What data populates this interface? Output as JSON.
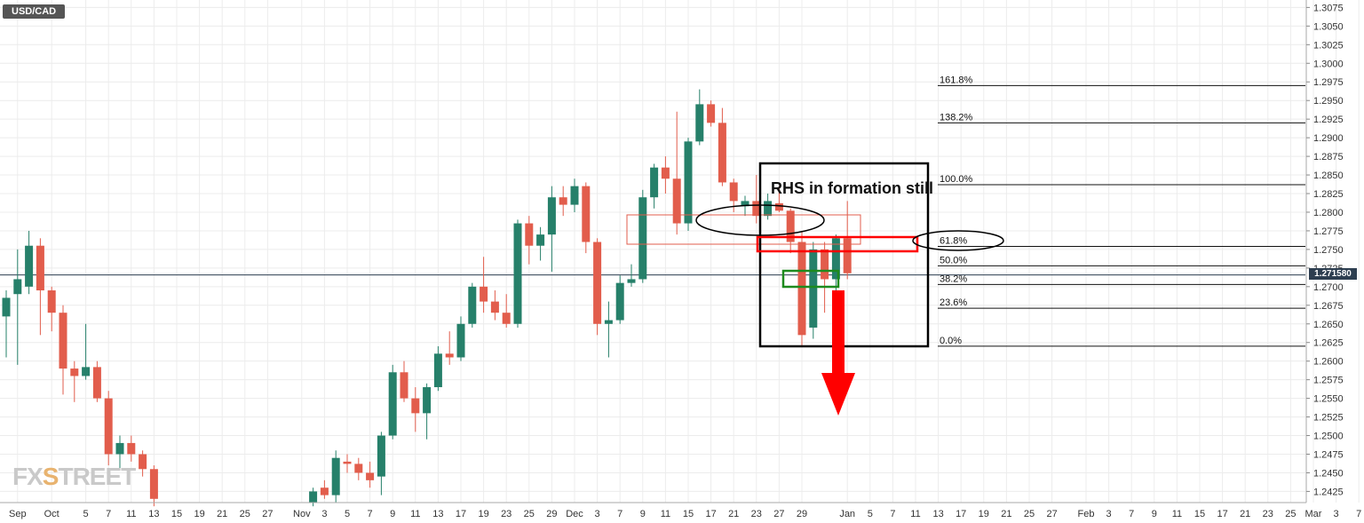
{
  "symbol": "USD/CAD",
  "annotation": "RHS in formation still",
  "current_price_label": "1.271580",
  "watermark": {
    "prefix": "FX",
    "highlight": "S",
    "suffix": "TREET"
  },
  "colors": {
    "bull": "#26806a",
    "bear": "#e25d4c",
    "price_line": "#2d3e50",
    "grid": "#ececec",
    "annotation_red": "#ff0000",
    "annotation_green": "#1e8a1e"
  },
  "chart_data": {
    "type": "candlestick",
    "title": "USD/CAD",
    "ylim": [
      1.241,
      1.3085
    ],
    "y_ticks": [
      "1.2425",
      "1.2450",
      "1.2475",
      "1.2500",
      "1.2525",
      "1.2550",
      "1.2575",
      "1.2600",
      "1.2625",
      "1.2650",
      "1.2675",
      "1.2700",
      "1.2725",
      "1.2750",
      "1.2775",
      "1.2800",
      "1.2825",
      "1.2850",
      "1.2875",
      "1.2900",
      "1.2925",
      "1.2950",
      "1.2975",
      "1.3000",
      "1.3025",
      "1.3050",
      "1.3075"
    ],
    "x_ticks": [
      {
        "label": "Sep",
        "x": 1
      },
      {
        "label": "Oct",
        "x": 4
      },
      {
        "label": "5",
        "x": 7
      },
      {
        "label": "7",
        "x": 9
      },
      {
        "label": "11",
        "x": 11
      },
      {
        "label": "13",
        "x": 13
      },
      {
        "label": "15",
        "x": 15
      },
      {
        "label": "19",
        "x": 17
      },
      {
        "label": "21",
        "x": 19
      },
      {
        "label": "25",
        "x": 21
      },
      {
        "label": "27",
        "x": 23
      },
      {
        "label": "Nov",
        "x": 26
      },
      {
        "label": "3",
        "x": 28
      },
      {
        "label": "5",
        "x": 30
      },
      {
        "label": "7",
        "x": 32
      },
      {
        "label": "9",
        "x": 34
      },
      {
        "label": "11",
        "x": 36
      },
      {
        "label": "13",
        "x": 38
      },
      {
        "label": "17",
        "x": 40
      },
      {
        "label": "19",
        "x": 42
      },
      {
        "label": "23",
        "x": 44
      },
      {
        "label": "25",
        "x": 46
      },
      {
        "label": "29",
        "x": 48
      },
      {
        "label": "Dec",
        "x": 50
      },
      {
        "label": "3",
        "x": 52
      },
      {
        "label": "7",
        "x": 54
      },
      {
        "label": "9",
        "x": 56
      },
      {
        "label": "11",
        "x": 58
      },
      {
        "label": "15",
        "x": 60
      },
      {
        "label": "17",
        "x": 62
      },
      {
        "label": "21",
        "x": 64
      },
      {
        "label": "23",
        "x": 66
      },
      {
        "label": "27",
        "x": 68
      },
      {
        "label": "29",
        "x": 70
      },
      {
        "label": "Jan",
        "x": 74
      },
      {
        "label": "5",
        "x": 76
      },
      {
        "label": "7",
        "x": 78
      },
      {
        "label": "11",
        "x": 80
      },
      {
        "label": "13",
        "x": 82
      },
      {
        "label": "17",
        "x": 84
      },
      {
        "label": "19",
        "x": 86
      },
      {
        "label": "21",
        "x": 88
      },
      {
        "label": "25",
        "x": 90
      },
      {
        "label": "27",
        "x": 92
      },
      {
        "label": "Feb",
        "x": 95
      },
      {
        "label": "3",
        "x": 97
      },
      {
        "label": "7",
        "x": 99
      },
      {
        "label": "9",
        "x": 101
      },
      {
        "label": "11",
        "x": 103
      },
      {
        "label": "15",
        "x": 105
      },
      {
        "label": "17",
        "x": 107
      },
      {
        "label": "21",
        "x": 109
      },
      {
        "label": "23",
        "x": 111
      },
      {
        "label": "25",
        "x": 113
      },
      {
        "label": "Mar",
        "x": 115
      },
      {
        "label": "3",
        "x": 117
      },
      {
        "label": "7",
        "x": 119
      }
    ],
    "candles": [
      {
        "x": 0,
        "o": 1.266,
        "h": 1.2695,
        "l": 1.2605,
        "c": 1.2685
      },
      {
        "x": 1,
        "o": 1.269,
        "h": 1.275,
        "l": 1.2595,
        "c": 1.271
      },
      {
        "x": 2,
        "o": 1.27,
        "h": 1.2775,
        "l": 1.269,
        "c": 1.2755
      },
      {
        "x": 3,
        "o": 1.2755,
        "h": 1.2765,
        "l": 1.2635,
        "c": 1.2695
      },
      {
        "x": 4,
        "o": 1.2695,
        "h": 1.27,
        "l": 1.264,
        "c": 1.2665
      },
      {
        "x": 5,
        "o": 1.2665,
        "h": 1.2675,
        "l": 1.2555,
        "c": 1.259
      },
      {
        "x": 6,
        "o": 1.259,
        "h": 1.26,
        "l": 1.2545,
        "c": 1.258
      },
      {
        "x": 7,
        "o": 1.258,
        "h": 1.265,
        "l": 1.2575,
        "c": 1.2592
      },
      {
        "x": 8,
        "o": 1.2592,
        "h": 1.26,
        "l": 1.2545,
        "c": 1.255
      },
      {
        "x": 9,
        "o": 1.255,
        "h": 1.256,
        "l": 1.246,
        "c": 1.2475
      },
      {
        "x": 10,
        "o": 1.2475,
        "h": 1.25,
        "l": 1.2455,
        "c": 1.249
      },
      {
        "x": 11,
        "o": 1.249,
        "h": 1.25,
        "l": 1.2465,
        "c": 1.2475
      },
      {
        "x": 12,
        "o": 1.2475,
        "h": 1.248,
        "l": 1.2445,
        "c": 1.2455
      },
      {
        "x": 13,
        "o": 1.2455,
        "h": 1.246,
        "l": 1.2405,
        "c": 1.2415
      },
      {
        "x": 27,
        "o": 1.241,
        "h": 1.243,
        "l": 1.2405,
        "c": 1.2425
      },
      {
        "x": 28,
        "o": 1.243,
        "h": 1.244,
        "l": 1.2415,
        "c": 1.242
      },
      {
        "x": 29,
        "o": 1.242,
        "h": 1.248,
        "l": 1.241,
        "c": 1.247
      },
      {
        "x": 30,
        "o": 1.2465,
        "h": 1.2475,
        "l": 1.245,
        "c": 1.2462
      },
      {
        "x": 31,
        "o": 1.2462,
        "h": 1.247,
        "l": 1.244,
        "c": 1.245
      },
      {
        "x": 32,
        "o": 1.245,
        "h": 1.2465,
        "l": 1.243,
        "c": 1.244
      },
      {
        "x": 33,
        "o": 1.2445,
        "h": 1.2505,
        "l": 1.242,
        "c": 1.25
      },
      {
        "x": 34,
        "o": 1.25,
        "h": 1.2595,
        "l": 1.2495,
        "c": 1.2585
      },
      {
        "x": 35,
        "o": 1.2585,
        "h": 1.26,
        "l": 1.2545,
        "c": 1.255
      },
      {
        "x": 36,
        "o": 1.255,
        "h": 1.2565,
        "l": 1.2505,
        "c": 1.253
      },
      {
        "x": 37,
        "o": 1.253,
        "h": 1.257,
        "l": 1.2495,
        "c": 1.2565
      },
      {
        "x": 38,
        "o": 1.2565,
        "h": 1.262,
        "l": 1.256,
        "c": 1.261
      },
      {
        "x": 39,
        "o": 1.261,
        "h": 1.264,
        "l": 1.2595,
        "c": 1.2605
      },
      {
        "x": 40,
        "o": 1.2605,
        "h": 1.266,
        "l": 1.26,
        "c": 1.265
      },
      {
        "x": 41,
        "o": 1.265,
        "h": 1.2705,
        "l": 1.2645,
        "c": 1.27
      },
      {
        "x": 42,
        "o": 1.27,
        "h": 1.274,
        "l": 1.2665,
        "c": 1.268
      },
      {
        "x": 43,
        "o": 1.268,
        "h": 1.2695,
        "l": 1.2655,
        "c": 1.2665
      },
      {
        "x": 44,
        "o": 1.2665,
        "h": 1.269,
        "l": 1.2645,
        "c": 1.265
      },
      {
        "x": 45,
        "o": 1.265,
        "h": 1.279,
        "l": 1.2645,
        "c": 1.2785
      },
      {
        "x": 46,
        "o": 1.2785,
        "h": 1.2795,
        "l": 1.273,
        "c": 1.2755
      },
      {
        "x": 47,
        "o": 1.2755,
        "h": 1.278,
        "l": 1.2735,
        "c": 1.277
      },
      {
        "x": 48,
        "o": 1.277,
        "h": 1.2835,
        "l": 1.272,
        "c": 1.282
      },
      {
        "x": 49,
        "o": 1.282,
        "h": 1.2835,
        "l": 1.2795,
        "c": 1.281
      },
      {
        "x": 50,
        "o": 1.281,
        "h": 1.2845,
        "l": 1.28,
        "c": 1.2835
      },
      {
        "x": 51,
        "o": 1.2835,
        "h": 1.284,
        "l": 1.2745,
        "c": 1.276
      },
      {
        "x": 52,
        "o": 1.276,
        "h": 1.2765,
        "l": 1.2635,
        "c": 1.265
      },
      {
        "x": 53,
        "o": 1.265,
        "h": 1.268,
        "l": 1.2605,
        "c": 1.2655
      },
      {
        "x": 54,
        "o": 1.2655,
        "h": 1.2715,
        "l": 1.265,
        "c": 1.2705
      },
      {
        "x": 55,
        "o": 1.2705,
        "h": 1.273,
        "l": 1.27,
        "c": 1.271
      },
      {
        "x": 56,
        "o": 1.271,
        "h": 1.283,
        "l": 1.2705,
        "c": 1.282
      },
      {
        "x": 57,
        "o": 1.282,
        "h": 1.2865,
        "l": 1.2805,
        "c": 1.286
      },
      {
        "x": 58,
        "o": 1.286,
        "h": 1.2875,
        "l": 1.2825,
        "c": 1.2845
      },
      {
        "x": 59,
        "o": 1.2845,
        "h": 1.2935,
        "l": 1.277,
        "c": 1.2785
      },
      {
        "x": 60,
        "o": 1.2785,
        "h": 1.29,
        "l": 1.2775,
        "c": 1.2895
      },
      {
        "x": 61,
        "o": 1.2895,
        "h": 1.2965,
        "l": 1.289,
        "c": 1.2945
      },
      {
        "x": 62,
        "o": 1.2945,
        "h": 1.295,
        "l": 1.2915,
        "c": 1.292
      },
      {
        "x": 63,
        "o": 1.292,
        "h": 1.294,
        "l": 1.2835,
        "c": 1.284
      },
      {
        "x": 64,
        "o": 1.284,
        "h": 1.2845,
        "l": 1.28,
        "c": 1.2815
      },
      {
        "x": 65,
        "o": 1.2808,
        "h": 1.2822,
        "l": 1.2795,
        "c": 1.2815
      },
      {
        "x": 66,
        "o": 1.2815,
        "h": 1.285,
        "l": 1.2785,
        "c": 1.2795
      },
      {
        "x": 67,
        "o": 1.2795,
        "h": 1.2825,
        "l": 1.279,
        "c": 1.2815
      },
      {
        "x": 68,
        "o": 1.2812,
        "h": 1.2835,
        "l": 1.28,
        "c": 1.2802
      },
      {
        "x": 69,
        "o": 1.2802,
        "h": 1.2805,
        "l": 1.2745,
        "c": 1.276
      },
      {
        "x": 70,
        "o": 1.276,
        "h": 1.2775,
        "l": 1.262,
        "c": 1.2635
      },
      {
        "x": 71,
        "o": 1.2645,
        "h": 1.276,
        "l": 1.263,
        "c": 1.275
      },
      {
        "x": 72,
        "o": 1.275,
        "h": 1.276,
        "l": 1.2665,
        "c": 1.271
      },
      {
        "x": 73,
        "o": 1.271,
        "h": 1.277,
        "l": 1.2695,
        "c": 1.2765
      },
      {
        "x": 74,
        "o": 1.2765,
        "h": 1.2815,
        "l": 1.271,
        "c": 1.2718
      }
    ],
    "fibonacci": [
      {
        "label": "161.8%",
        "value": 1.297
      },
      {
        "label": "138.2%",
        "value": 1.292
      },
      {
        "label": "100.0%",
        "value": 1.2837
      },
      {
        "label": "61.8%",
        "value": 1.2754
      },
      {
        "label": "50.0%",
        "value": 1.2728
      },
      {
        "label": "38.2%",
        "value": 1.2703
      },
      {
        "label": "23.6%",
        "value": 1.2671
      },
      {
        "label": "0.0%",
        "value": 1.262
      }
    ],
    "current_price": 1.27158,
    "grid": true
  }
}
